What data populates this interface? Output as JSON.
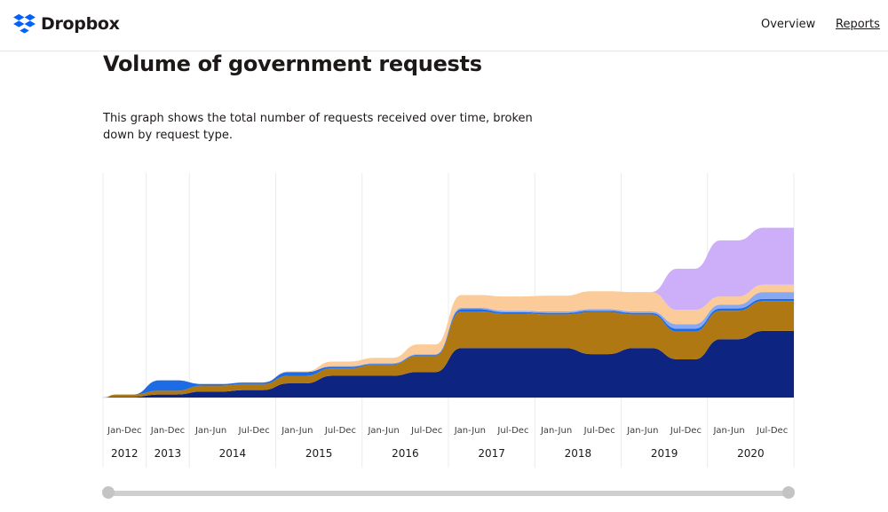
{
  "header": {
    "brand": "Dropbox",
    "nav": [
      {
        "label": "Overview"
      },
      {
        "label": "Reports"
      }
    ]
  },
  "main": {
    "title": "Volume of government requests",
    "description": "This graph shows the total number of requests received over time, broken down by request type."
  },
  "colors": {
    "brand_blue": "#0061fe",
    "navy": "#0d2481",
    "brown": "#b07812",
    "light_blue": "#88a9f2",
    "peach": "#fbcb9a",
    "lavender": "#cdaef8",
    "blue": "#1e6be6"
  },
  "chart_data": {
    "type": "area",
    "stacked": true,
    "x": [
      "2012",
      "2013",
      "Jan-Jun 2014",
      "Jul-Dec 2014",
      "Jan-Jun 2015",
      "Jul-Dec 2015",
      "Jan-Jun 2016",
      "Jul-Dec 2016",
      "Jan-Jun 2017",
      "Jul-Dec 2017",
      "Jan-Jun 2018",
      "Jul-Dec 2018",
      "Jan-Jun 2019",
      "Jul-Dec 2019",
      "Jan-Jun 2020",
      "Jul-Dec 2020"
    ],
    "period_labels": [
      "Jan-Dec",
      "Jan-Dec",
      "Jan-Jun",
      "Jul-Dec",
      "Jan-Jun",
      "Jul-Dec",
      "Jan-Jun",
      "Jul-Dec",
      "Jan-Jun",
      "Jul-Dec",
      "Jan-Jun",
      "Jul-Dec",
      "Jan-Jun",
      "Jul-Dec",
      "Jan-Jun",
      "Jul-Dec"
    ],
    "year_labels": [
      "2012",
      "2013",
      "2014",
      "2015",
      "2016",
      "2017",
      "2018",
      "2019",
      "2020"
    ],
    "year_span": [
      1,
      1,
      2,
      2,
      2,
      2,
      2,
      2,
      2
    ],
    "series": [
      {
        "color": "#0d2481",
        "values": [
          1,
          4,
          8,
          10,
          19,
          29,
          29,
          34,
          66,
          66,
          66,
          58,
          66,
          51,
          78,
          89
        ]
      },
      {
        "color": "#b07812",
        "values": [
          3,
          5,
          8,
          8,
          10,
          10,
          15,
          22,
          49,
          46,
          45,
          56,
          45,
          37,
          38,
          40
        ]
      },
      {
        "color": "#1e6be6",
        "values": [
          0,
          14,
          2,
          2,
          5,
          2,
          1,
          1,
          3,
          2,
          2,
          2,
          2,
          4,
          3,
          3
        ]
      },
      {
        "color": "#88a9f2",
        "values": [
          0,
          0,
          0,
          0,
          0,
          1,
          1,
          1,
          2,
          2,
          2,
          2,
          2,
          6,
          5,
          9
        ]
      },
      {
        "color": "#fbcb9a",
        "values": [
          0,
          0,
          0,
          0,
          1,
          6,
          7,
          13,
          17,
          19,
          21,
          24,
          26,
          19,
          11,
          10
        ]
      },
      {
        "color": "#cdaef8",
        "values": [
          0,
          0,
          0,
          0,
          0,
          0,
          0,
          0,
          0,
          0,
          0,
          0,
          0,
          55,
          75,
          76
        ]
      }
    ],
    "xlabel": "",
    "ylabel": "",
    "ylim": [
      0,
      300
    ],
    "grid": "vertical"
  }
}
